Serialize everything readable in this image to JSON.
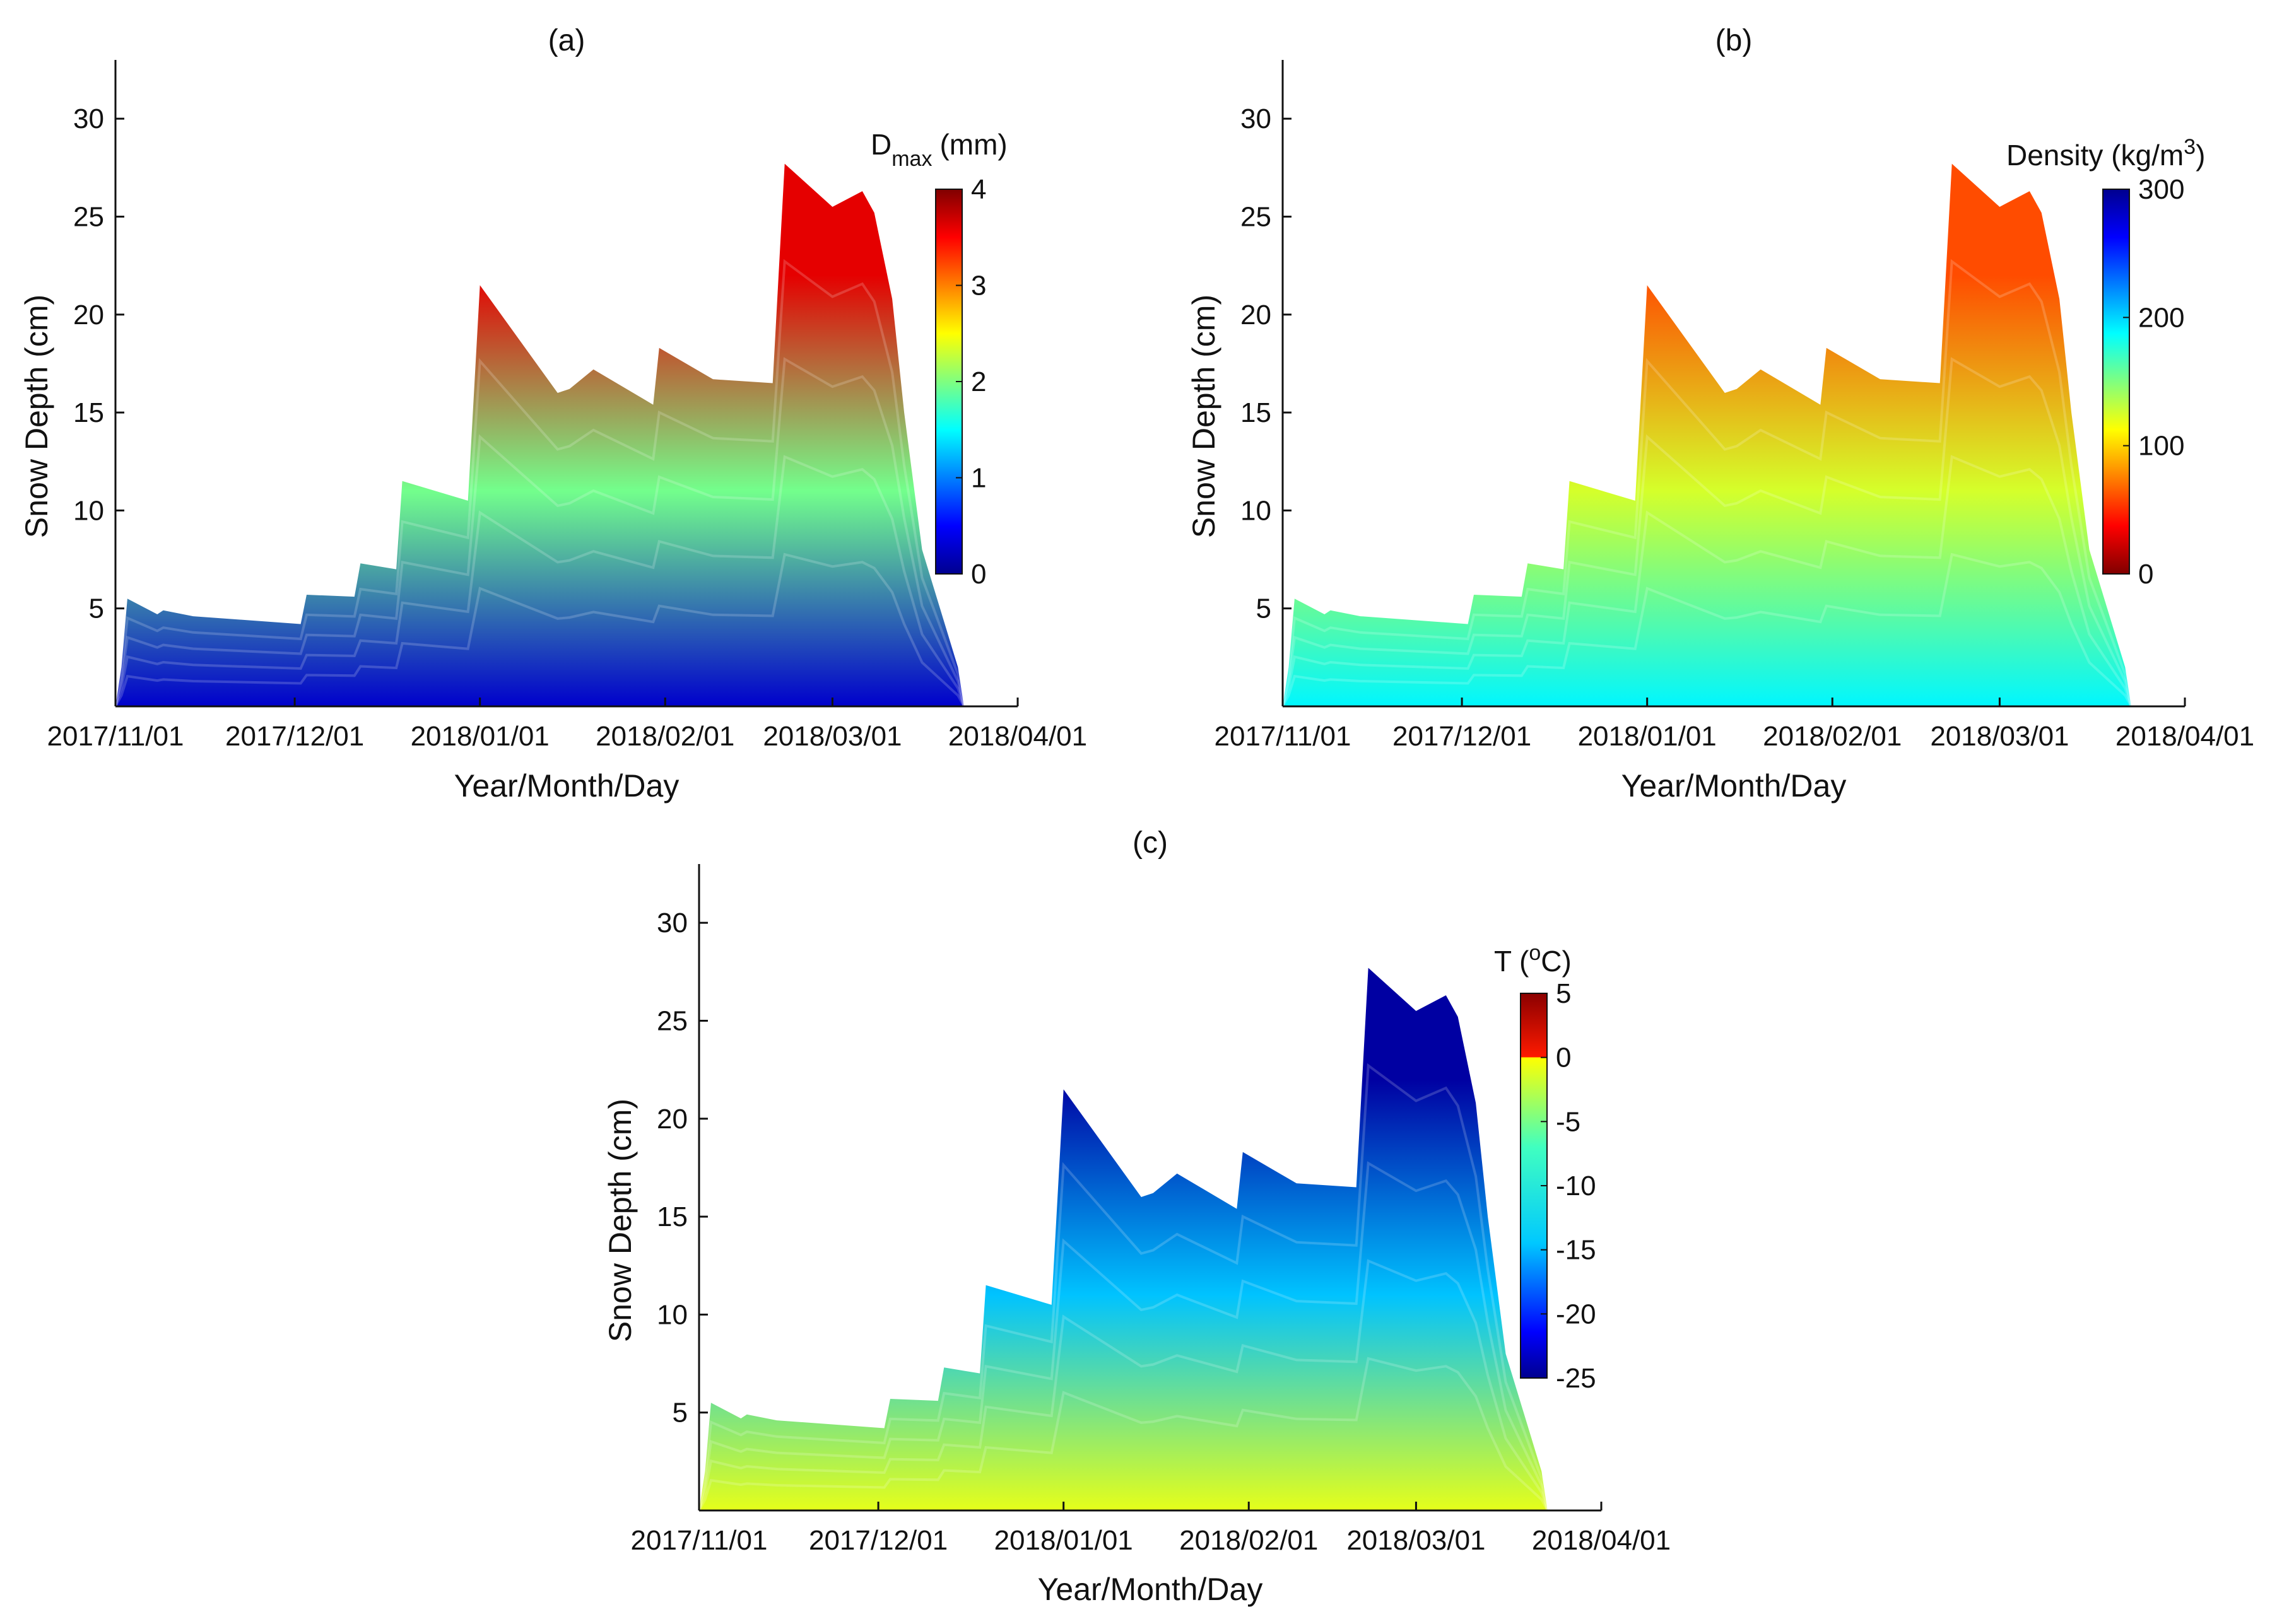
{
  "chart_data": [
    {
      "type": "heatmap",
      "title": "(a)",
      "xlabel": "Year/Month/Day",
      "ylabel": "Snow Depth (cm)",
      "x_ticks": [
        "2017/11/01",
        "2017/12/01",
        "2018/01/01",
        "2018/02/01",
        "2018/03/01",
        "2018/04/01"
      ],
      "y_ticks": [
        5,
        10,
        15,
        20,
        25,
        30
      ],
      "xlim_days": [
        0,
        151
      ],
      "ylim": [
        0,
        33
      ],
      "colorbar": {
        "title_main": "D",
        "title_sub": "max",
        "title_unit": "(mm)",
        "colormap": "jet",
        "range": [
          0,
          4
        ],
        "ticks": [
          0,
          1,
          2,
          3,
          4
        ]
      },
      "value_low": 0.3,
      "value_high": 3.6,
      "snow_depth_profile": {
        "days": [
          0,
          1,
          2,
          7,
          8,
          13,
          31,
          32,
          40,
          41,
          47,
          48,
          59,
          61,
          74,
          76,
          80,
          90,
          91,
          100,
          110,
          112,
          120,
          125,
          127,
          130,
          132,
          135,
          139,
          141,
          142
        ],
        "depth_cm": [
          0,
          2,
          5.5,
          4.7,
          4.9,
          4.6,
          4.2,
          5.7,
          5.6,
          7.3,
          7,
          11.5,
          10.5,
          21.5,
          16,
          16.2,
          17.2,
          15.4,
          18.3,
          16.7,
          16.5,
          27.7,
          25.5,
          26.3,
          25.2,
          20.8,
          15,
          8,
          4,
          2,
          0
        ]
      }
    },
    {
      "type": "heatmap",
      "title": "(b)",
      "xlabel": "Year/Month/Day",
      "ylabel": "Snow Depth (cm)",
      "x_ticks": [
        "2017/11/01",
        "2017/12/01",
        "2018/01/01",
        "2018/02/01",
        "2018/03/01",
        "2018/04/01"
      ],
      "y_ticks": [
        5,
        10,
        15,
        20,
        25,
        30
      ],
      "xlim_days": [
        0,
        151
      ],
      "ylim": [
        0,
        33
      ],
      "colorbar": {
        "title_main": "Density (kg/m",
        "title_sup": "3",
        "title_end": ")",
        "colormap": "jet_reversed",
        "range": [
          0,
          300
        ],
        "ticks": [
          0,
          100,
          200,
          300
        ]
      },
      "value_low": 190,
      "value_high": 60,
      "snow_depth_profile": {
        "days": [
          0,
          1,
          2,
          7,
          8,
          13,
          31,
          32,
          40,
          41,
          47,
          48,
          59,
          61,
          74,
          76,
          80,
          90,
          91,
          100,
          110,
          112,
          120,
          125,
          127,
          130,
          132,
          135,
          139,
          141,
          142
        ],
        "depth_cm": [
          0,
          2,
          5.5,
          4.7,
          4.9,
          4.6,
          4.2,
          5.7,
          5.6,
          7.3,
          7,
          11.5,
          10.5,
          21.5,
          16,
          16.2,
          17.2,
          15.4,
          18.3,
          16.7,
          16.5,
          27.7,
          25.5,
          26.3,
          25.2,
          20.8,
          15,
          8,
          4,
          2,
          0
        ]
      }
    },
    {
      "type": "heatmap",
      "title": "(c)",
      "xlabel": "Year/Month/Day",
      "ylabel": "Snow Depth (cm)",
      "x_ticks": [
        "2017/11/01",
        "2017/12/01",
        "2018/01/01",
        "2018/02/01",
        "2018/03/01",
        "2018/04/01"
      ],
      "y_ticks": [
        5,
        10,
        15,
        20,
        25,
        30
      ],
      "xlim_days": [
        0,
        151
      ],
      "ylim": [
        0,
        33
      ],
      "colorbar": {
        "title_main": "T (",
        "title_sup": "o",
        "title_end": "C)",
        "colormap": "jet",
        "range": [
          -25,
          5
        ],
        "ticks": [
          -25,
          -20,
          -15,
          -10,
          -5,
          0,
          5
        ]
      },
      "value_low": -7,
      "value_high": -24,
      "snow_depth_profile": {
        "days": [
          0,
          1,
          2,
          7,
          8,
          13,
          31,
          32,
          40,
          41,
          47,
          48,
          59,
          61,
          74,
          76,
          80,
          90,
          91,
          100,
          110,
          112,
          120,
          125,
          127,
          130,
          132,
          135,
          139,
          141,
          142
        ],
        "depth_cm": [
          0,
          2,
          5.5,
          4.7,
          4.9,
          4.6,
          4.2,
          5.7,
          5.6,
          7.3,
          7,
          11.5,
          10.5,
          21.5,
          16,
          16.2,
          17.2,
          15.4,
          18.3,
          16.7,
          16.5,
          27.7,
          25.5,
          26.3,
          25.2,
          20.8,
          15,
          8,
          4,
          2,
          0
        ]
      }
    }
  ]
}
